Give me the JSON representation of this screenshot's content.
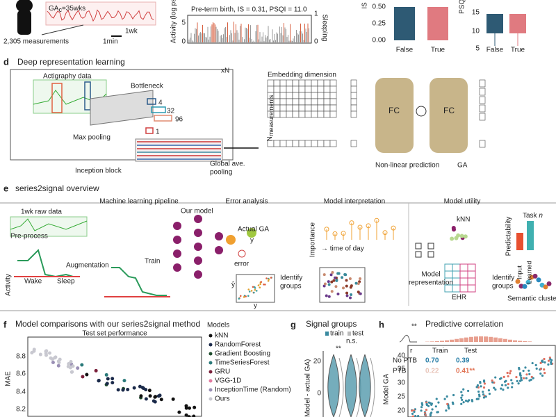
{
  "top": {
    "ga": "GA",
    "ga_sub": "c",
    "ga_value": "=35wks",
    "measurements": "2,305 measurements",
    "week": "1wk",
    "minute": "1min",
    "activity_axis": "Activity (log ps",
    "activity_title": "Pre-term birth, IS = 0.31, PSQI = 11.0",
    "activity_ticks": [
      "5",
      "0"
    ],
    "sleep_ticks": [
      "1",
      "0"
    ],
    "sleep_axis": "Sleeping",
    "is_axis": "IS",
    "is_ticks": [
      "0.50",
      "0.25",
      "0.00"
    ],
    "psqi_axis": "PSQI",
    "psqi_ticks": [
      "15",
      "10",
      "5"
    ],
    "groups": [
      "False",
      "True"
    ]
  },
  "d": {
    "letter": "d",
    "title": "Deep representation learning",
    "actigraphy": "Actigraphy data",
    "bottleneck": "Bottleneck",
    "repeat": "xN",
    "filters": [
      "4",
      "32",
      "96",
      "1"
    ],
    "max_pooling": "Max pooling",
    "inception": "Inception block",
    "global_pool": [
      "Global ave.",
      "pooling"
    ],
    "embedding": "Embedding dimension",
    "n": "N",
    "n_sub": "measurements",
    "fc": [
      "FC",
      "FC"
    ],
    "nonlinear": "Non-linear prediction",
    "ga": "GA"
  },
  "e": {
    "letter": "e",
    "title": "series2signal overview",
    "sections": [
      "Machine learning pipeline",
      "Error analysis",
      "Model interpretation",
      "Model utility"
    ],
    "raw": "1wk raw data",
    "preprocess": "Pre-process",
    "augmentation": "Augmentation",
    "train": "Train",
    "model": "Our model",
    "actual": "Actual GA",
    "y": "y",
    "error": "error",
    "importance": "Importance",
    "time": "→ time of day",
    "identify": [
      "Identify",
      "groups"
    ],
    "activity": "Activity",
    "wake": "Wake",
    "sleep": "Sleep",
    "yhat": "ŷ",
    "yaxis": "y",
    "knn": "kNN",
    "predictability": "Predictability",
    "task": "Task ",
    "task_n": "n",
    "bars": [
      "Input",
      "Learned"
    ],
    "representation": [
      "Model",
      "representation"
    ],
    "ehr": "EHR",
    "identify2": [
      "Identify",
      "groups"
    ],
    "semantic": "Semantic clustering"
  },
  "f": {
    "letter": "f",
    "title": "Model comparisons with our series2signal method",
    "subtitle": "Test set performance",
    "ylabel": "MAE",
    "yticks": [
      "8.8",
      "8.6",
      "8.4",
      "8.2"
    ],
    "legend_title": "Models",
    "models": [
      {
        "name": "kNN",
        "color": "#111111"
      },
      {
        "name": "RandomForest",
        "color": "#1b2a4a"
      },
      {
        "name": "Gradient Boosting",
        "color": "#1f4d2e"
      },
      {
        "name": "TimeSeriesForest",
        "color": "#2a7a7a"
      },
      {
        "name": "GRU",
        "color": "#7a1f3a"
      },
      {
        "name": "VGG-1D",
        "color": "#e27aa0"
      },
      {
        "name": "InceptionTime (Random)",
        "color": "#9a8fb5"
      },
      {
        "name": "Ours",
        "color": "#c8c8d0"
      }
    ]
  },
  "g": {
    "letter": "g",
    "title": "Signal groups",
    "legend": [
      "train",
      "test"
    ],
    "ns": "n.s.",
    "sig": "**",
    "yticks": [
      "20",
      "0"
    ],
    "ylabel": "(Model - actual GA)"
  },
  "h": {
    "letter": "h",
    "title": "Predictive correlation",
    "sig": "**",
    "table": {
      "header": [
        "r",
        "Train",
        "Test"
      ],
      "rows": [
        [
          "No PTB",
          "0.70",
          "0.39"
        ],
        [
          "PTB",
          "0.22",
          "0.41**"
        ]
      ]
    },
    "ylabel": "Model GA",
    "yticks": [
      "40",
      "35",
      "30",
      "25",
      "20"
    ]
  }
}
